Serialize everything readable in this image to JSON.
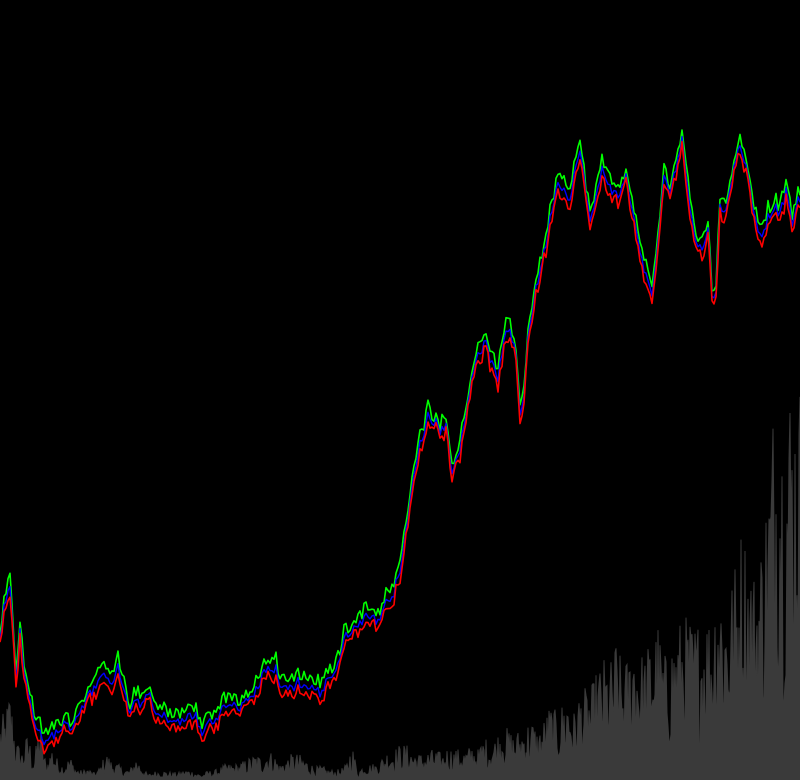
{
  "colors": {
    "background": "#000000",
    "high": "#00ff00",
    "mid": "#0000ff",
    "low": "#ff0000",
    "volume": "#3a3a3a"
  },
  "chart_data": {
    "type": "line",
    "grid": false,
    "legend": "none",
    "price_ylim": [
      0,
      100
    ],
    "volume_ylim": [
      0,
      100
    ],
    "series": [
      {
        "role": "price",
        "x": [
          0,
          5,
          10,
          13,
          16,
          20,
          24,
          28,
          34,
          40,
          46,
          52,
          58,
          64,
          70,
          76,
          82,
          88,
          94,
          100,
          106,
          112,
          118,
          124,
          130,
          136,
          142,
          148,
          154,
          160,
          166,
          172,
          178,
          184,
          190,
          196,
          202,
          208,
          214,
          220,
          226,
          232,
          238,
          244,
          250,
          256,
          262,
          268,
          272,
          276,
          280,
          286,
          292,
          298,
          304,
          310,
          316,
          322,
          328,
          334,
          340,
          346,
          352,
          358,
          364,
          370,
          376,
          382,
          388,
          394,
          400,
          406,
          412,
          418,
          424,
          428,
          432,
          436,
          440,
          446,
          452,
          456,
          460,
          466,
          472,
          478,
          482,
          486,
          492,
          498,
          504,
          510,
          516,
          520,
          524,
          528,
          534,
          540,
          546,
          552,
          558,
          564,
          570,
          576,
          580,
          584,
          590,
          596,
          602,
          608,
          614,
          620,
          626,
          632,
          638,
          644,
          648,
          652,
          658,
          664,
          670,
          676,
          682,
          686,
          690,
          696,
          702,
          708,
          712,
          716,
          720,
          726,
          732,
          738,
          742,
          746,
          750,
          756,
          762,
          768,
          774,
          780,
          786,
          792,
          798
        ],
        "values": [
          17.4,
          22.9,
          25.5,
          19.0,
          10.5,
          18.0,
          11.7,
          8.3,
          4.2,
          1.9,
          0.0,
          1.6,
          2.1,
          3.4,
          2.5,
          4.4,
          6.1,
          7.7,
          9.2,
          10.1,
          11.5,
          10.1,
          12.3,
          8.7,
          4.9,
          7.0,
          6.5,
          8.8,
          5.2,
          4.5,
          4.6,
          3.8,
          3.6,
          3.7,
          5.0,
          4.5,
          1.4,
          3.8,
          3.7,
          5.4,
          6.1,
          6.4,
          6.0,
          6.3,
          7.7,
          8.6,
          10.9,
          13.0,
          11.7,
          12.1,
          8.9,
          9.7,
          9.0,
          10.2,
          9.4,
          9.2,
          8.9,
          8.1,
          11.0,
          11.4,
          14.0,
          17.6,
          18.6,
          18.7,
          20.7,
          20.9,
          19.7,
          21.1,
          23.4,
          24.5,
          28.2,
          33.9,
          40.8,
          47.1,
          50.0,
          52.8,
          51.9,
          51.8,
          50.4,
          51.0,
          44.2,
          45.0,
          47.6,
          52.7,
          59.1,
          62.8,
          63.5,
          64.2,
          60.8,
          58.7,
          65.1,
          66.1,
          62.2,
          53.1,
          56.2,
          65.1,
          71.3,
          75.9,
          80.2,
          86.0,
          90.2,
          88.8,
          87.6,
          92.9,
          94.4,
          91.2,
          83.6,
          87.2,
          92.2,
          90.2,
          88.2,
          87.7,
          91.7,
          85.3,
          81.2,
          75.9,
          73.8,
          72.0,
          80.3,
          90.5,
          88.9,
          92.4,
          96.7,
          91.5,
          86.4,
          80.7,
          79.1,
          82.5,
          72.4,
          71.9,
          86.8,
          85.0,
          90.4,
          96.0,
          94.7,
          93.1,
          88.7,
          83.6,
          81.5,
          84.4,
          86.2,
          85.0,
          88.4,
          83.6,
          86.9
        ]
      },
      {
        "role": "volume",
        "x": [
          0,
          5,
          10,
          16,
          22,
          28,
          34,
          40,
          46,
          52,
          58,
          64,
          70,
          76,
          82,
          88,
          94,
          100,
          106,
          112,
          118,
          124,
          130,
          136,
          142,
          148,
          154,
          160,
          166,
          172,
          178,
          184,
          190,
          196,
          202,
          208,
          214,
          220,
          226,
          232,
          238,
          244,
          250,
          256,
          262,
          268,
          274,
          280,
          286,
          292,
          298,
          304,
          310,
          316,
          322,
          328,
          334,
          340,
          346,
          352,
          358,
          364,
          370,
          376,
          382,
          388,
          394,
          400,
          406,
          412,
          418,
          424,
          430,
          436,
          442,
          448,
          454,
          460,
          466,
          472,
          478,
          484,
          490,
          496,
          502,
          508,
          514,
          520,
          526,
          532,
          538,
          544,
          550,
          556,
          562,
          568,
          574,
          580,
          586,
          592,
          598,
          604,
          610,
          616,
          622,
          628,
          634,
          640,
          646,
          652,
          658,
          664,
          670,
          676,
          682,
          688,
          694,
          700,
          706,
          712,
          718,
          724,
          730,
          736,
          742,
          748,
          754,
          760,
          766,
          772,
          778,
          784,
          790,
          796
        ],
        "values": [
          9.2,
          10.0,
          13.6,
          6.0,
          4.5,
          7.1,
          3.1,
          9.0,
          2.4,
          5.1,
          2.9,
          2.3,
          3.6,
          1.8,
          1.4,
          1.8,
          1.1,
          2.0,
          4.2,
          2.8,
          2.4,
          1.6,
          1.6,
          3.4,
          2.1,
          0.8,
          1.3,
          1.4,
          1.3,
          1.2,
          1.1,
          1.5,
          1.5,
          1.1,
          0.8,
          1.4,
          1.4,
          1.9,
          2.4,
          2.4,
          2.4,
          2.9,
          3.4,
          3.9,
          3.4,
          4.5,
          3.9,
          2.4,
          3.2,
          3.9,
          3.9,
          3.4,
          2.5,
          2.0,
          2.1,
          1.6,
          1.5,
          1.6,
          2.3,
          5.4,
          1.3,
          2.5,
          2.4,
          2.5,
          3.4,
          4.5,
          4.6,
          5.3,
          5.3,
          4.5,
          4.0,
          3.9,
          4.5,
          4.5,
          3.9,
          5.0,
          4.6,
          4.6,
          4.5,
          5.3,
          4.6,
          6.5,
          5.5,
          6.5,
          8.3,
          7.6,
          6.9,
          7.6,
          8.5,
          9.1,
          7.1,
          9.1,
          11.3,
          10.1,
          11.5,
          13.5,
          10.2,
          13.5,
          13.5,
          14.0,
          16.7,
          18.0,
          17.2,
          20.9,
          17.2,
          18.2,
          22.5,
          19.1,
          18.9,
          22.5,
          23.3,
          18.2,
          20.6,
          22.5,
          24.1,
          24.4,
          23.2,
          24.4,
          25.5,
          24.4,
          33.3,
          27.7,
          29.2,
          33.0,
          38.5,
          35.4,
          31.5,
          35.0,
          42.9,
          54.8,
          64.5,
          52.1,
          60.7,
          60.0
        ]
      }
    ]
  }
}
